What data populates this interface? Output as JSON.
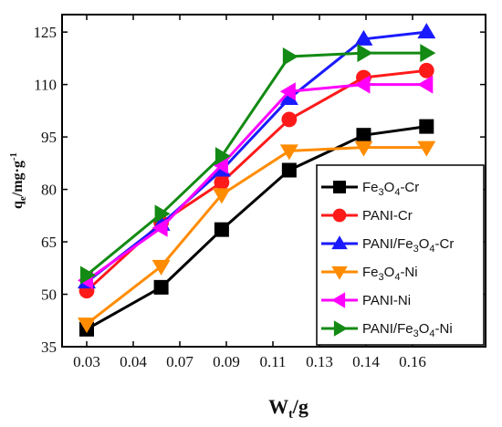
{
  "chart_data": {
    "type": "line",
    "x_tick_labels": [
      "0.03",
      "0.04",
      "0.07",
      "0.09",
      "0.11",
      "0.13",
      "0.14",
      "0.16"
    ],
    "y_ticks": [
      35,
      50,
      65,
      80,
      95,
      110,
      125
    ],
    "ylim": [
      35,
      130
    ],
    "xlabel": {
      "main": "W",
      "sub": "t",
      "tail": "/g"
    },
    "ylabel": {
      "pre": "q",
      "sub": "e",
      "post": "/mg·g",
      "sup": "-1"
    },
    "legend_position": "bottom-right",
    "grid": false,
    "series": [
      {
        "name": {
          "parts": [
            [
              "Fe",
              "n"
            ],
            [
              "3",
              "sub"
            ],
            [
              "O",
              "n"
            ],
            [
              "4",
              "sub"
            ],
            [
              "-Cr",
              "n"
            ]
          ]
        },
        "color": "#000000",
        "marker": "square",
        "values": [
          40,
          52,
          68.5,
          85.5,
          95.5,
          98
        ]
      },
      {
        "name": {
          "parts": [
            [
              "PANI-Cr",
              "n"
            ]
          ]
        },
        "color": "#ff1a1a",
        "marker": "circle",
        "values": [
          51,
          70.5,
          82,
          100,
          112,
          114
        ]
      },
      {
        "name": {
          "parts": [
            [
              "PANI/Fe",
              "n"
            ],
            [
              "3",
              "sub"
            ],
            [
              "O",
              "n"
            ],
            [
              "4",
              "sub"
            ],
            [
              "-Cr",
              "n"
            ]
          ]
        },
        "color": "#1a1aff",
        "marker": "triangle-up",
        "values": [
          53.5,
          70,
          85.5,
          106,
          123,
          125
        ]
      },
      {
        "name": {
          "parts": [
            [
              "Fe",
              "n"
            ],
            [
              "3",
              "sub"
            ],
            [
              "O",
              "n"
            ],
            [
              "4",
              "sub"
            ],
            [
              "-Ni",
              "n"
            ]
          ]
        },
        "color": "#ff8c00",
        "marker": "triangle-down",
        "values": [
          41.5,
          58,
          78.5,
          91,
          92,
          92
        ]
      },
      {
        "name": {
          "parts": [
            [
              "PANI-Ni",
              "n"
            ]
          ]
        },
        "color": "#ff00ff",
        "marker": "triangle-left",
        "values": [
          54,
          69,
          87,
          108,
          110,
          110
        ]
      },
      {
        "name": {
          "parts": [
            [
              "PANI/Fe",
              "n"
            ],
            [
              "3",
              "sub"
            ],
            [
              "O",
              "n"
            ],
            [
              "4",
              "sub"
            ],
            [
              "-Ni",
              "n"
            ]
          ]
        },
        "color": "#138a13",
        "marker": "triangle-right",
        "values": [
          55.5,
          73,
          89.5,
          118,
          119,
          119
        ]
      }
    ]
  }
}
